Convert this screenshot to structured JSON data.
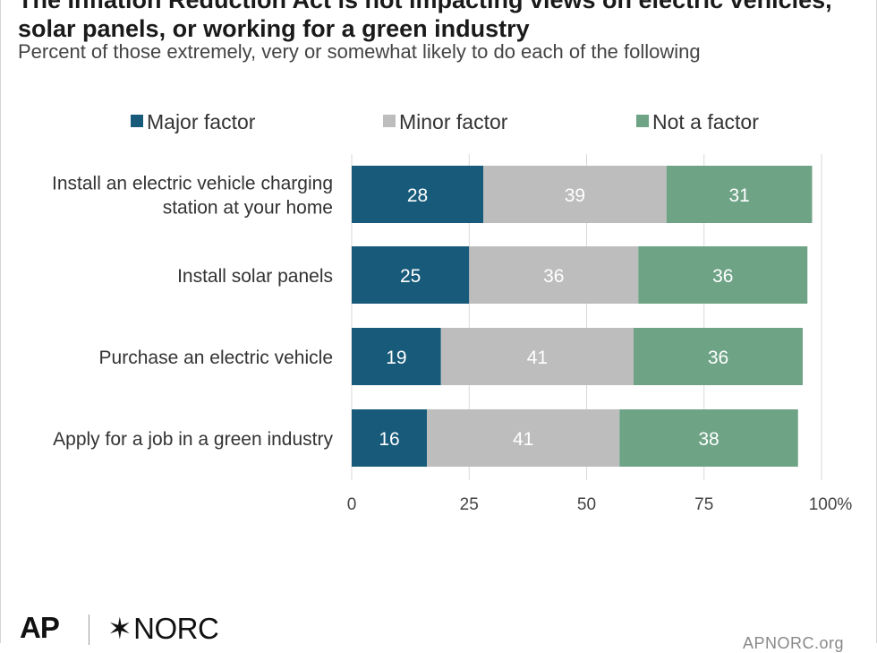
{
  "header": {
    "title": "The Inflation Reduction Act is not impacting views on electric vehicles, solar panels, or working for a green industry",
    "subtitle": "Percent of those extremely, very or somewhat likely to do each of the following"
  },
  "footer": {
    "ap_logo": "AP",
    "norc_logo": "NORC",
    "url": "APNORC.org"
  },
  "colors": {
    "major": "#175a7a",
    "minor": "#bdbdbd",
    "not": "#6ea386",
    "grid": "#d9d9d9"
  },
  "chart_data": {
    "type": "bar",
    "orientation": "horizontal",
    "stacked": true,
    "title": "The Inflation Reduction Act is not impacting views on electric vehicles, solar panels, or working for a green industry",
    "subtitle": "Percent of those extremely, very or somewhat likely to do each of the following",
    "categories": [
      [
        "Install an electric vehicle charging",
        "station at your home"
      ],
      [
        "Install solar panels"
      ],
      [
        "Purchase an electric vehicle"
      ],
      [
        "Apply for a job in a green industry"
      ]
    ],
    "series": [
      {
        "name": "Major factor",
        "values": [
          28,
          25,
          19,
          16
        ]
      },
      {
        "name": "Minor factor",
        "values": [
          39,
          36,
          41,
          41
        ]
      },
      {
        "name": "Not a factor",
        "values": [
          31,
          36,
          36,
          38
        ]
      }
    ],
    "xlim": [
      0,
      100
    ],
    "xticks": [
      "0",
      "25",
      "50",
      "75",
      "100%"
    ],
    "grid": true,
    "legend": "top"
  }
}
